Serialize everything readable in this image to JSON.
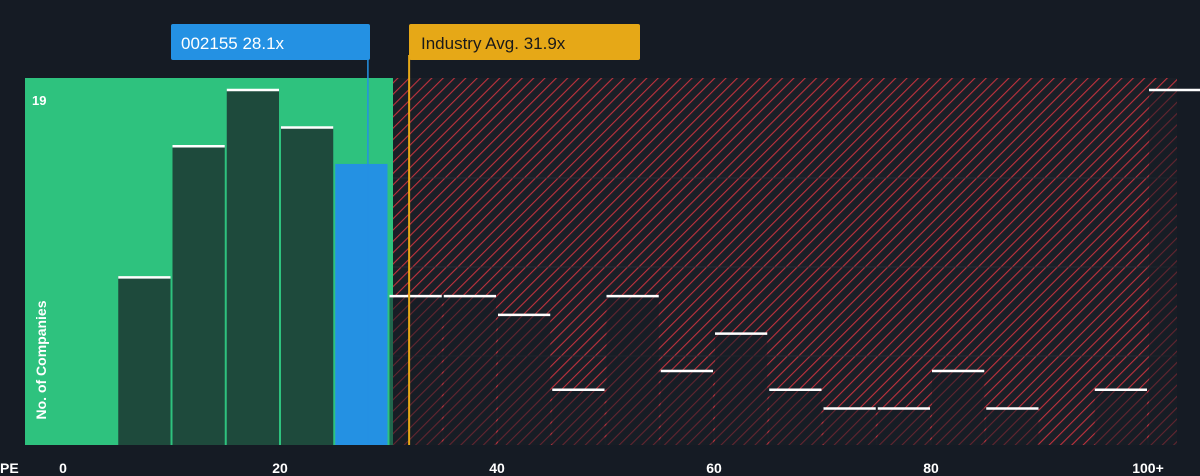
{
  "chart_data": {
    "type": "bar",
    "xlabel": "PE",
    "ylabel": "No. of Companies",
    "x_tick_labels": [
      "0",
      "20",
      "40",
      "60",
      "80",
      "100+"
    ],
    "x_tick_values": [
      0,
      20,
      40,
      60,
      80,
      100
    ],
    "y_max_label": "19",
    "ylim": [
      0,
      19
    ],
    "bin_width": 5,
    "bins": [
      {
        "x0": 5,
        "x1": 10,
        "value": 9
      },
      {
        "x0": 10,
        "x1": 15,
        "value": 16
      },
      {
        "x0": 15,
        "x1": 20,
        "value": 19
      },
      {
        "x0": 20,
        "x1": 25,
        "value": 17
      },
      {
        "x0": 25,
        "x1": 30,
        "value": 15,
        "highlight": true
      },
      {
        "x0": 30,
        "x1": 35,
        "value": 8
      },
      {
        "x0": 35,
        "x1": 40,
        "value": 8
      },
      {
        "x0": 40,
        "x1": 45,
        "value": 7
      },
      {
        "x0": 45,
        "x1": 50,
        "value": 3
      },
      {
        "x0": 50,
        "x1": 55,
        "value": 8
      },
      {
        "x0": 55,
        "x1": 60,
        "value": 4
      },
      {
        "x0": 60,
        "x1": 65,
        "value": 6
      },
      {
        "x0": 65,
        "x1": 70,
        "value": 3
      },
      {
        "x0": 70,
        "x1": 75,
        "value": 2
      },
      {
        "x0": 75,
        "x1": 80,
        "value": 2
      },
      {
        "x0": 80,
        "x1": 85,
        "value": 4
      },
      {
        "x0": 85,
        "x1": 90,
        "value": 2
      },
      {
        "x0": 95,
        "x1": 100,
        "value": 3
      },
      {
        "x0": 100,
        "x1": 105,
        "value": 19
      }
    ],
    "company_marker": {
      "label": "002155 28.1x",
      "value": 28.1
    },
    "industry_marker": {
      "label": "Industry Avg. 31.9x",
      "value": 31.9
    },
    "colors": {
      "background": "#151b24",
      "fair_zone": "#2ec27e",
      "bar_fill": "#1e4a3c",
      "highlight_bar": "#2491e3",
      "bar_cap": "#ffffff",
      "hatch": "#c0323d",
      "company_callout": "#2491e3",
      "industry_callout": "#e6a817",
      "gridline": "#2a313b"
    }
  }
}
